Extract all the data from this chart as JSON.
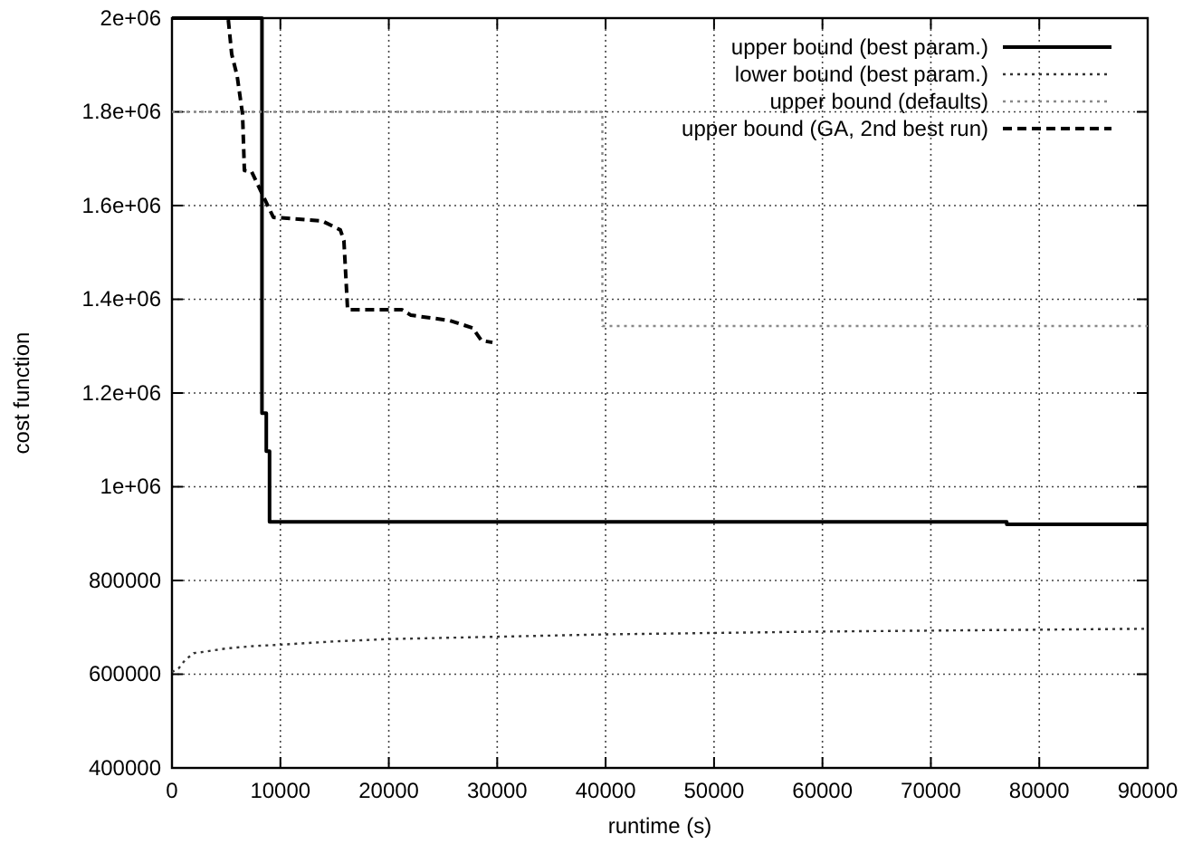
{
  "chart_data": {
    "type": "line",
    "xlabel": "runtime (s)",
    "ylabel": "cost function",
    "xlim": [
      0,
      90000
    ],
    "ylim": [
      400000,
      2000000
    ],
    "xticks": [
      0,
      10000,
      20000,
      30000,
      40000,
      50000,
      60000,
      70000,
      80000,
      90000
    ],
    "yticks": [
      400000,
      600000,
      800000,
      {
        "value": 1000000,
        "label": "1e+06"
      },
      {
        "value": 1200000,
        "label": "1.2e+06"
      },
      {
        "value": 1400000,
        "label": "1.4e+06"
      },
      {
        "value": 1600000,
        "label": "1.6e+06"
      },
      {
        "value": 1800000,
        "label": "1.8e+06"
      },
      {
        "value": 2000000,
        "label": "2e+06"
      }
    ],
    "grid": true,
    "legend": "top right",
    "marker": "none",
    "series": [
      {
        "name": "upper bound (best param.)",
        "color": "#000000",
        "line_style": "solid",
        "x": [
          0,
          8300,
          8300,
          8700,
          8700,
          9000,
          9000,
          77000,
          77000,
          90000
        ],
        "values": [
          2000000,
          2000000,
          1157000,
          1157000,
          1076000,
          1076000,
          925000,
          925000,
          920000,
          920000
        ]
      },
      {
        "name": "lower bound (best param.)",
        "color": "#333333",
        "line_style": "dotted",
        "x": [
          0,
          600,
          1200,
          2000,
          3000,
          5000,
          7500,
          10000,
          15000,
          20000,
          30000,
          40000,
          50000,
          60000,
          70000,
          80000,
          90000
        ],
        "values": [
          605000,
          612000,
          630000,
          645000,
          648000,
          655000,
          660000,
          663000,
          670000,
          675000,
          680000,
          685000,
          688000,
          691000,
          693000,
          695000,
          697000
        ]
      },
      {
        "name": "upper bound (defaults)",
        "color": "#888888",
        "line_style": "dotted",
        "x": [
          0,
          39700,
          39700,
          90000
        ],
        "values": [
          1800000,
          1800000,
          1343000,
          1343000
        ]
      },
      {
        "name": "upper bound (GA, 2nd best run)",
        "color": "#000000",
        "line_style": "dashed",
        "x": [
          0,
          5180,
          5510,
          6010,
          6510,
          6680,
          7350,
          9350,
          13860,
          15530,
          15860,
          16200,
          21200,
          22040,
          25550,
          27720,
          28550,
          29560
        ],
        "values": [
          2000000,
          2000000,
          1923000,
          1877000,
          1795000,
          1675000,
          1672000,
          1575000,
          1567000,
          1548000,
          1525000,
          1378000,
          1378000,
          1366000,
          1355000,
          1339000,
          1312000,
          1308000
        ]
      }
    ]
  }
}
